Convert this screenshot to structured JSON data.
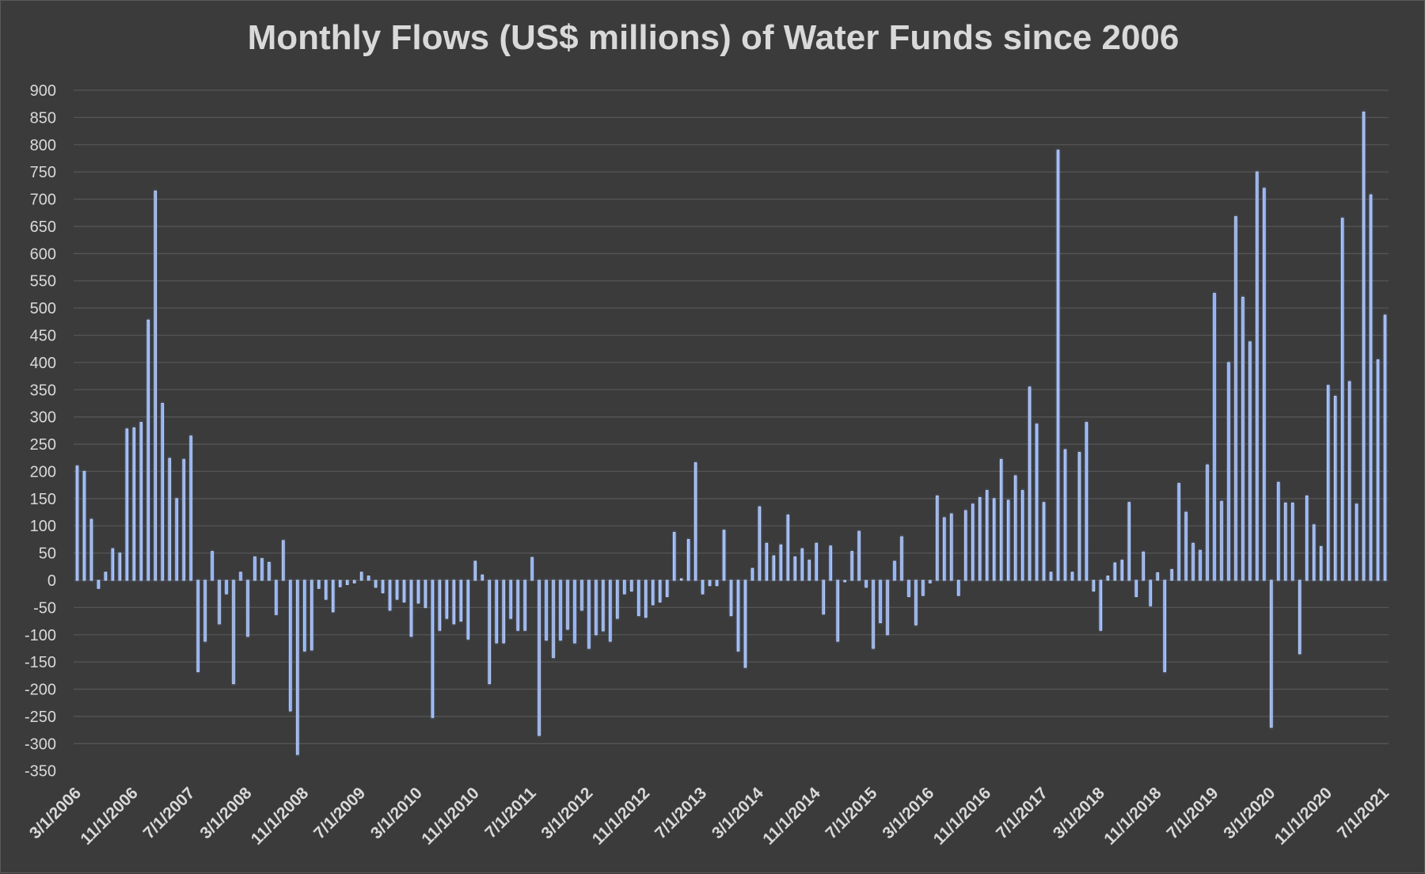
{
  "chart_data": {
    "type": "bar",
    "title": "Monthly Flows (US$ millions) of Water Funds since 2006",
    "xlabel": "",
    "ylabel": "",
    "ylim": [
      -350,
      900
    ],
    "y_ticks": [
      900,
      850,
      800,
      750,
      700,
      650,
      600,
      550,
      500,
      450,
      400,
      350,
      300,
      250,
      200,
      150,
      100,
      50,
      0,
      -50,
      -100,
      -150,
      -200,
      -250,
      -300,
      -350
    ],
    "x_tick_labels": [
      "3/1/2006",
      "11/1/2006",
      "7/1/2007",
      "3/1/2008",
      "11/1/2008",
      "7/1/2009",
      "3/1/2010",
      "11/1/2010",
      "7/1/2011",
      "3/1/2012",
      "11/1/2012",
      "7/1/2013",
      "3/1/2014",
      "11/1/2014",
      "7/1/2015",
      "3/1/2016",
      "11/1/2016",
      "7/1/2017",
      "3/1/2018",
      "11/1/2018",
      "7/1/2019",
      "3/1/2020",
      "11/1/2020",
      "7/1/2021"
    ],
    "start_month": "3/1/2006",
    "end_month": "7/1/2021",
    "grid": true,
    "legend": "none",
    "bar_color": "#8fb0ee",
    "values": [
      210,
      200,
      112,
      -15,
      15,
      58,
      50,
      278,
      280,
      290,
      478,
      715,
      325,
      224,
      150,
      222,
      265,
      -168,
      -112,
      53,
      -80,
      -25,
      -190,
      15,
      -103,
      43,
      40,
      33,
      -63,
      73,
      -240,
      -320,
      -130,
      -128,
      -15,
      -35,
      -58,
      -12,
      -8,
      -5,
      15,
      8,
      -13,
      -23,
      -55,
      -35,
      -40,
      -103,
      -42,
      -50,
      -252,
      -92,
      -70,
      -80,
      -75,
      -108,
      35,
      10,
      -190,
      -115,
      -115,
      -70,
      -92,
      -92,
      42,
      -285,
      -110,
      -142,
      -110,
      -90,
      -115,
      -55,
      -125,
      -100,
      -93,
      -112,
      -70,
      -25,
      -20,
      -65,
      -68,
      -45,
      -40,
      -30,
      88,
      3,
      75,
      216,
      -25,
      -10,
      -10,
      92,
      -65,
      -130,
      -160,
      22,
      135,
      68,
      45,
      65,
      120,
      43,
      58,
      37,
      68,
      -62,
      63,
      -112,
      -3,
      53,
      90,
      -13,
      -125,
      -78,
      -100,
      35,
      80,
      -30,
      -82,
      -28,
      -5,
      155,
      115,
      122,
      -28,
      128,
      140,
      152,
      165,
      150,
      222,
      147,
      192,
      165,
      355,
      287,
      143,
      15,
      790,
      240,
      15,
      235,
      290,
      -20,
      -92,
      8,
      32,
      37,
      143,
      -30,
      52,
      -47,
      14,
      -168,
      20,
      178,
      125,
      68,
      55,
      212,
      527,
      145,
      400,
      668,
      520,
      438,
      750,
      720,
      -270,
      180,
      142,
      142,
      -135,
      155,
      102,
      62,
      358,
      338,
      665,
      365,
      140,
      860,
      708,
      405,
      487
    ]
  }
}
